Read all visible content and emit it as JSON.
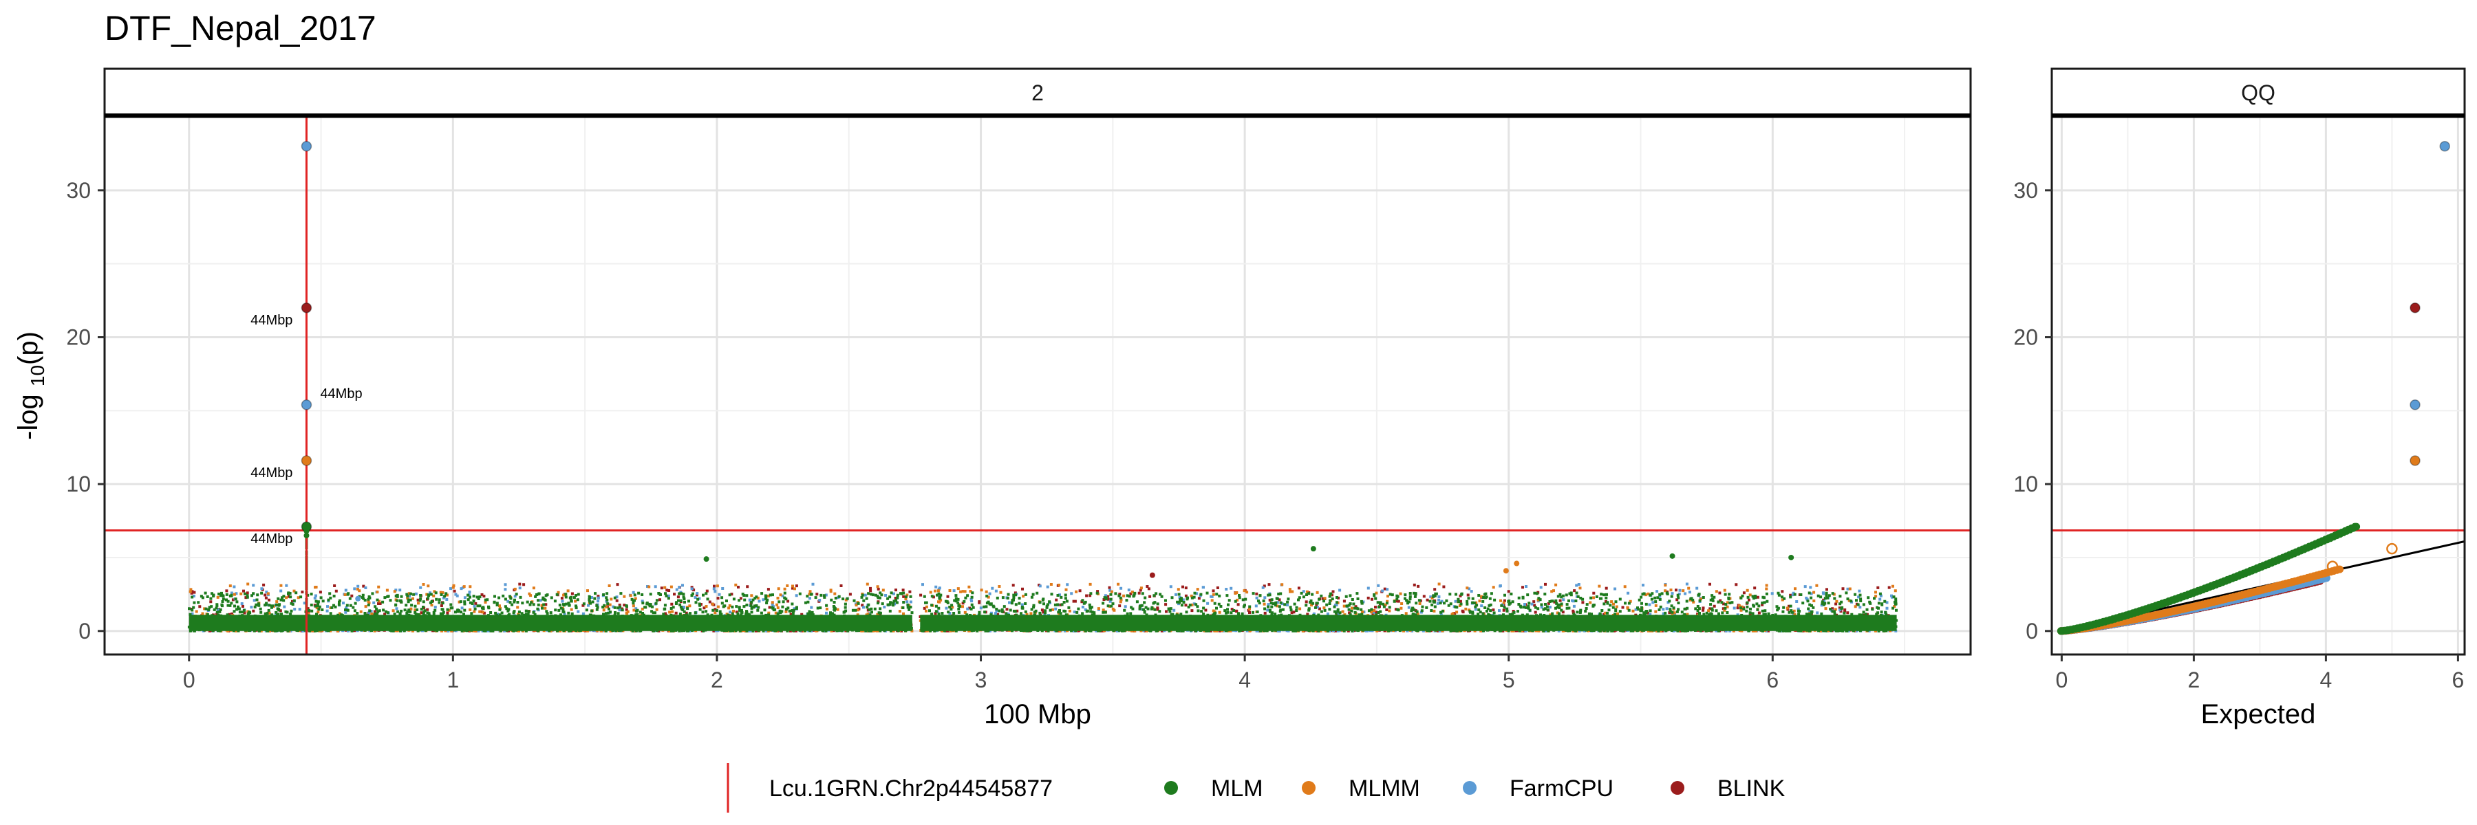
{
  "title": "DTF_Nepal_2017",
  "colors": {
    "MLM": "#1e7b1e",
    "MLMM": "#e07b1a",
    "FarmCPU": "#5b9bd5",
    "BLINK": "#9b1c1c",
    "threshold": "#e02424",
    "marker": "#e02424"
  },
  "legend": {
    "marker_label": "Lcu.1GRN.Chr2p44545877",
    "series": [
      {
        "name": "MLM",
        "color_key": "MLM"
      },
      {
        "name": "MLMM",
        "color_key": "MLMM"
      },
      {
        "name": "FarmCPU",
        "color_key": "FarmCPU"
      },
      {
        "name": "BLINK",
        "color_key": "BLINK"
      }
    ]
  },
  "chart_data": [
    {
      "type": "scatter",
      "panel": "2",
      "strip_label": "2",
      "xlabel": "100 Mbp",
      "ylabel": "-log 10(p)",
      "xlim": [
        -0.32,
        6.75
      ],
      "ylim": [
        -1.6,
        35.0
      ],
      "xticks": [
        0,
        1,
        2,
        3,
        4,
        5,
        6
      ],
      "yticks": [
        0,
        10,
        20,
        30
      ],
      "threshold_y": 6.85,
      "marker_x": 0.445,
      "grid": true,
      "genome_range": [
        0,
        6.47
      ],
      "background_max": 3.2,
      "peaks": [
        {
          "series": "FarmCPU",
          "x": 0.445,
          "y": 33.0,
          "label": ""
        },
        {
          "series": "BLINK",
          "x": 0.445,
          "y": 22.0,
          "label": "44Mbp"
        },
        {
          "series": "FarmCPU",
          "x": 0.445,
          "y": 15.4,
          "label": "44Mbp"
        },
        {
          "series": "MLMM",
          "x": 0.445,
          "y": 11.6,
          "label": "44Mbp"
        },
        {
          "series": "MLM",
          "x": 0.445,
          "y": 7.1,
          "label": "44Mbp"
        },
        {
          "series": "MLM",
          "x": 0.445,
          "y": 6.8,
          "label": ""
        },
        {
          "series": "MLM",
          "x": 0.445,
          "y": 6.5,
          "label": ""
        },
        {
          "series": "MLM",
          "x": 1.96,
          "y": 4.9,
          "label": ""
        },
        {
          "series": "MLM",
          "x": 4.26,
          "y": 5.6,
          "label": ""
        },
        {
          "series": "MLM",
          "x": 5.62,
          "y": 5.1,
          "label": ""
        },
        {
          "series": "MLM",
          "x": 6.07,
          "y": 5.0,
          "label": ""
        },
        {
          "series": "MLMM",
          "x": 5.03,
          "y": 4.6,
          "label": ""
        },
        {
          "series": "MLMM",
          "x": 4.99,
          "y": 4.1,
          "label": ""
        },
        {
          "series": "BLINK",
          "x": 3.65,
          "y": 3.8,
          "label": ""
        },
        {
          "series": "FarmCPU",
          "x": 0.64,
          "y": 2.2,
          "label": ""
        }
      ]
    },
    {
      "type": "scatter",
      "panel": "QQ",
      "strip_label": "QQ",
      "xlabel": "Expected",
      "ylabel": "",
      "xlim": [
        -0.15,
        6.1
      ],
      "ylim": [
        -1.6,
        35.0
      ],
      "xticks": [
        0,
        2,
        4,
        6
      ],
      "yticks": [
        0,
        10,
        20,
        30
      ],
      "threshold_y": 6.85,
      "diagonal_slope": 1.0,
      "grid": true,
      "points": [
        {
          "series": "FarmCPU",
          "x": 5.8,
          "y": 33.0
        },
        {
          "series": "BLINK",
          "x": 5.35,
          "y": 22.0
        },
        {
          "series": "FarmCPU",
          "x": 5.35,
          "y": 15.4
        },
        {
          "series": "MLMM",
          "x": 5.35,
          "y": 11.6
        },
        {
          "series": "MLMM",
          "x": 5.0,
          "y": 5.6
        },
        {
          "series": "MLMM",
          "x": 4.1,
          "y": 4.4
        }
      ],
      "curves": [
        {
          "series": "MLM",
          "x_end": 4.45,
          "y_end": 7.1
        },
        {
          "series": "MLMM",
          "x_end": 4.2,
          "y_end": 4.2
        },
        {
          "series": "FarmCPU",
          "x_end": 4.0,
          "y_end": 3.6
        },
        {
          "series": "BLINK",
          "x_end": 3.9,
          "y_end": 3.4
        }
      ]
    }
  ]
}
